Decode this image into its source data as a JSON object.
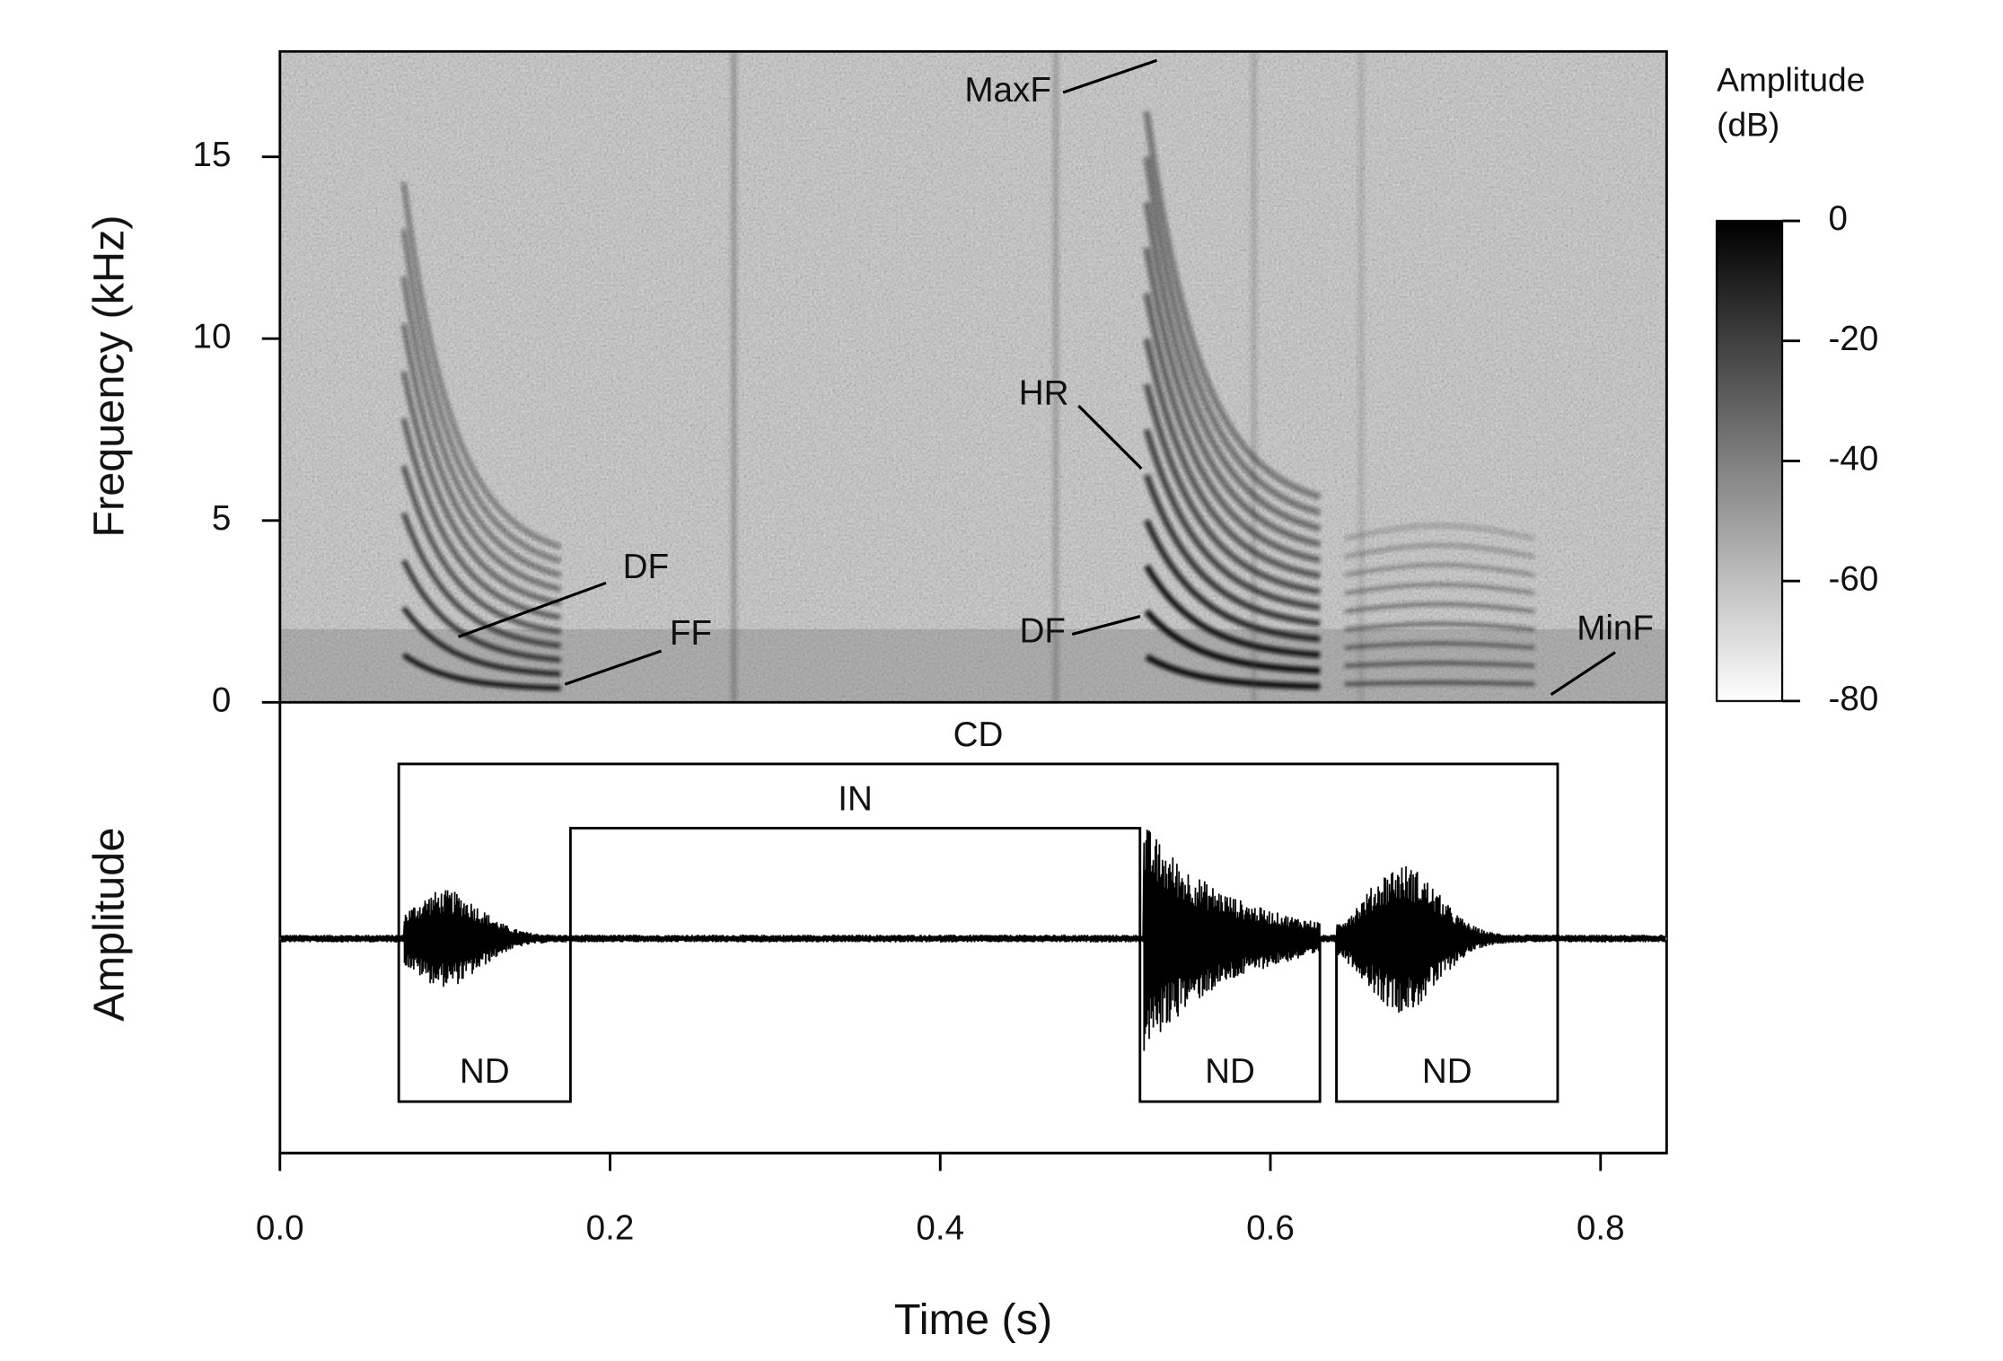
{
  "chart_data": {
    "type": "spectrogram",
    "xlabel": "Time (s)",
    "ylabel": "Frequency (kHz)",
    "amplitude_label": "Amplitude",
    "xlim": [
      0,
      0.84
    ],
    "xticks": [
      {
        "value": 0,
        "label": "0.0"
      },
      0.2,
      0.4,
      0.6,
      0.8
    ],
    "ylim": [
      0,
      17.9
    ],
    "yticks": [
      0,
      5,
      10,
      15
    ],
    "colorbar": {
      "title": [
        "Amplitude",
        "(dB)"
      ],
      "lim": [
        -80,
        0
      ],
      "ticks": [
        0,
        -20,
        -40,
        -60,
        -80
      ]
    },
    "annotations": [
      {
        "text": "MaxF"
      },
      {
        "text": "HR"
      },
      {
        "text": "DF"
      },
      {
        "text": "FF"
      },
      {
        "text": "DF"
      },
      {
        "text": "MinF"
      }
    ],
    "segments": [
      {
        "label": "CD",
        "start": 0.072,
        "end": 0.774
      },
      {
        "label": "IN",
        "start": 0.176,
        "end": 0.521
      },
      {
        "label": "ND",
        "start": 0.072,
        "end": 0.176
      },
      {
        "label": "ND",
        "start": 0.521,
        "end": 0.63
      },
      {
        "label": "ND",
        "start": 0.64,
        "end": 0.774
      }
    ]
  }
}
